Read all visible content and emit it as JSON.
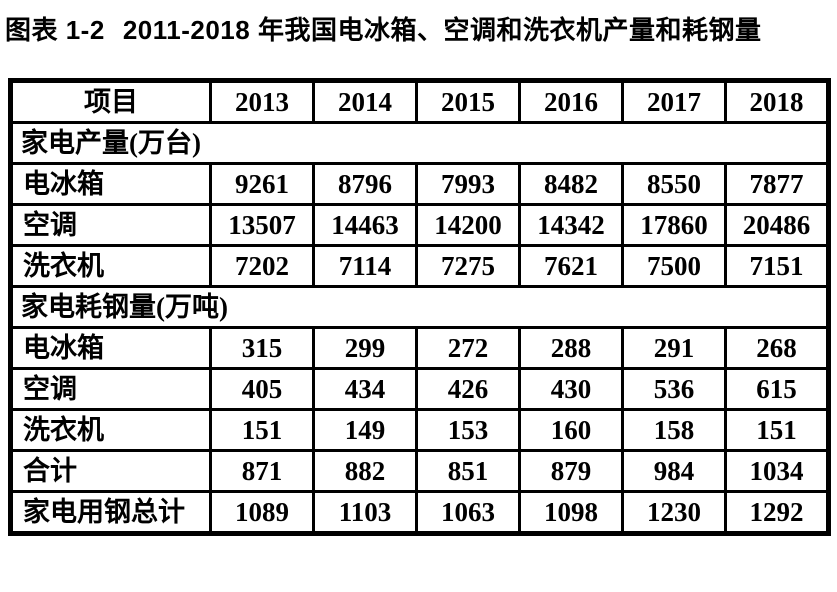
{
  "title": {
    "prefix": "图表 1-2",
    "text": "2011-2018 年我国电冰箱、空调和洗衣机产量和耗钢量"
  },
  "table": {
    "columns": [
      "项目",
      "2013",
      "2014",
      "2015",
      "2016",
      "2017",
      "2018"
    ],
    "sections": [
      {
        "header": "家电产量(万台)",
        "rows": [
          {
            "label": "电冰箱",
            "values": [
              "9261",
              "8796",
              "7993",
              "8482",
              "8550",
              "7877"
            ]
          },
          {
            "label": "空调",
            "values": [
              "13507",
              "14463",
              "14200",
              "14342",
              "17860",
              "20486"
            ]
          },
          {
            "label": "洗衣机",
            "values": [
              "7202",
              "7114",
              "7275",
              "7621",
              "7500",
              "7151"
            ]
          }
        ]
      },
      {
        "header": "家电耗钢量(万吨)",
        "rows": [
          {
            "label": "电冰箱",
            "values": [
              "315",
              "299",
              "272",
              "288",
              "291",
              "268"
            ]
          },
          {
            "label": "空调",
            "values": [
              "405",
              "434",
              "426",
              "430",
              "536",
              "615"
            ]
          },
          {
            "label": "洗衣机",
            "values": [
              "151",
              "149",
              "153",
              "160",
              "158",
              "151"
            ]
          },
          {
            "label": "合计",
            "values": [
              "871",
              "882",
              "851",
              "879",
              "984",
              "1034"
            ]
          },
          {
            "label": "家电用钢总计",
            "values": [
              "1089",
              "1103",
              "1063",
              "1098",
              "1230",
              "1292"
            ]
          }
        ]
      }
    ]
  },
  "colors": {
    "ink": "#000000",
    "paper": "#ffffff"
  }
}
